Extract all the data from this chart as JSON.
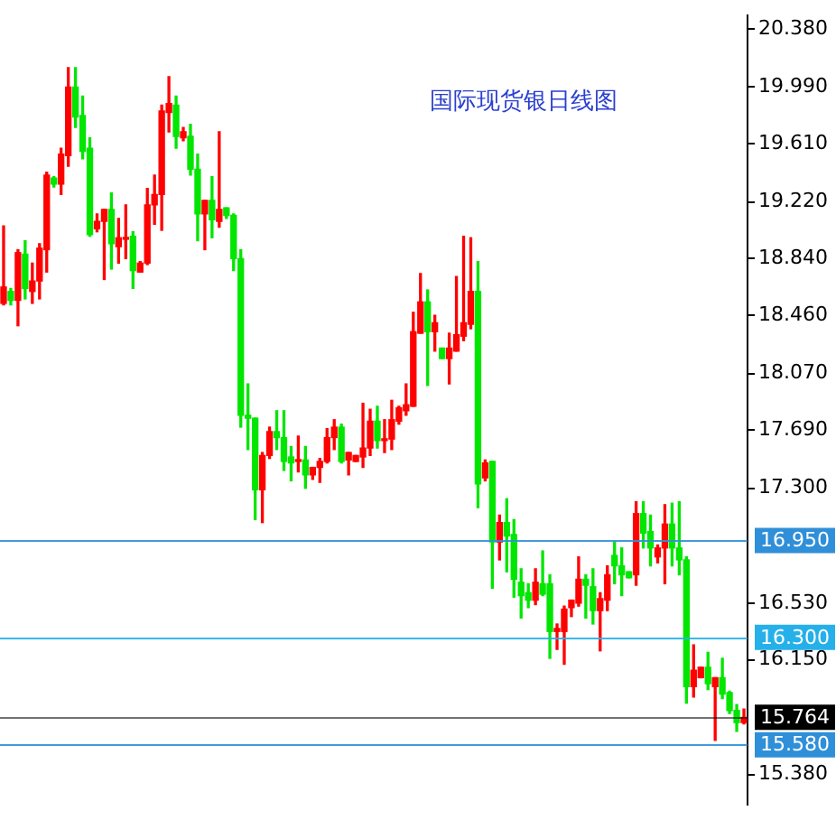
{
  "chart_data": {
    "type": "candlestick",
    "title": "国际现货银日线图",
    "categories": [
      null,
      null,
      null,
      null,
      null,
      null,
      null,
      null,
      null,
      null,
      null,
      null,
      null,
      null,
      null,
      null,
      null,
      null,
      null,
      null,
      null,
      null,
      null,
      null,
      null,
      null,
      null,
      null,
      null,
      null,
      null,
      null,
      null,
      null,
      null,
      null,
      null,
      null,
      null,
      null,
      null,
      null,
      null,
      null,
      null,
      null,
      null,
      null,
      null,
      null,
      null,
      null,
      null,
      null,
      null,
      null,
      null,
      null,
      null,
      null,
      null,
      null,
      null,
      null,
      null,
      null,
      null,
      null,
      null,
      null,
      null,
      null,
      null,
      null,
      null,
      null,
      null,
      null,
      null,
      null,
      null,
      null,
      null,
      null,
      null,
      null,
      null,
      null,
      null,
      null,
      null,
      null,
      null,
      null,
      null,
      null,
      null,
      null,
      null,
      null,
      null,
      null,
      null,
      null
    ],
    "ohlc": [
      [
        18.54,
        19.06,
        18.53,
        18.65
      ],
      [
        18.62,
        18.64,
        18.53,
        18.56
      ],
      [
        18.56,
        18.9,
        18.39,
        18.88
      ],
      [
        18.87,
        18.96,
        18.57,
        18.64
      ],
      [
        18.62,
        18.81,
        18.54,
        18.69
      ],
      [
        18.69,
        18.94,
        18.57,
        18.91
      ],
      [
        18.9,
        19.42,
        18.75,
        19.4
      ],
      [
        19.38,
        19.39,
        19.32,
        19.34
      ],
      [
        19.34,
        19.58,
        19.27,
        19.54
      ],
      [
        19.53,
        20.12,
        19.46,
        19.99
      ],
      [
        19.99,
        20.12,
        19.72,
        19.79
      ],
      [
        19.8,
        19.93,
        19.51,
        19.56
      ],
      [
        19.58,
        19.65,
        18.99,
        19.0
      ],
      [
        19.04,
        19.14,
        19.02,
        19.09
      ],
      [
        19.09,
        19.17,
        18.7,
        19.17
      ],
      [
        19.17,
        19.28,
        18.77,
        18.94
      ],
      [
        18.92,
        19.11,
        18.81,
        18.98
      ],
      [
        18.97,
        19.2,
        18.84,
        18.98
      ],
      [
        18.99,
        19.02,
        18.64,
        18.76
      ],
      [
        18.75,
        18.82,
        18.75,
        18.81
      ],
      [
        18.81,
        19.31,
        18.8,
        19.2
      ],
      [
        19.2,
        19.4,
        19.07,
        19.27
      ],
      [
        19.27,
        19.87,
        19.03,
        19.83
      ],
      [
        19.82,
        20.06,
        19.69,
        19.88
      ],
      [
        19.87,
        19.93,
        19.58,
        19.66
      ],
      [
        19.65,
        19.72,
        19.63,
        19.69
      ],
      [
        19.66,
        19.74,
        19.4,
        19.44
      ],
      [
        19.44,
        19.54,
        18.96,
        19.14
      ],
      [
        19.14,
        19.23,
        18.9,
        19.23
      ],
      [
        19.23,
        19.39,
        18.98,
        19.1
      ],
      [
        19.09,
        19.69,
        19.05,
        19.17
      ],
      [
        19.18,
        19.18,
        19.11,
        19.13
      ],
      [
        19.13,
        19.14,
        18.76,
        18.84
      ],
      [
        18.84,
        18.9,
        17.71,
        17.79
      ],
      [
        17.79,
        18.0,
        17.56,
        17.77
      ],
      [
        17.77,
        17.77,
        17.09,
        17.29
      ],
      [
        17.29,
        17.54,
        17.07,
        17.52
      ],
      [
        17.52,
        17.71,
        17.5,
        17.68
      ],
      [
        17.68,
        17.82,
        17.56,
        17.64
      ],
      [
        17.64,
        17.82,
        17.42,
        17.48
      ],
      [
        17.51,
        17.58,
        17.35,
        17.47
      ],
      [
        17.48,
        17.65,
        17.41,
        17.49
      ],
      [
        17.49,
        17.58,
        17.3,
        17.39
      ],
      [
        17.39,
        17.44,
        17.36,
        17.44
      ],
      [
        17.44,
        17.5,
        17.34,
        17.48
      ],
      [
        17.48,
        17.7,
        17.47,
        17.64
      ],
      [
        17.64,
        17.76,
        17.56,
        17.71
      ],
      [
        17.71,
        17.73,
        17.47,
        17.48
      ],
      [
        17.49,
        17.54,
        17.39,
        17.54
      ],
      [
        17.48,
        17.52,
        17.48,
        17.52
      ],
      [
        17.51,
        17.87,
        17.44,
        17.57
      ],
      [
        17.57,
        17.83,
        17.52,
        17.75
      ],
      [
        17.75,
        17.85,
        17.57,
        17.62
      ],
      [
        17.62,
        17.76,
        17.54,
        17.63
      ],
      [
        17.63,
        17.89,
        17.56,
        17.76
      ],
      [
        17.75,
        17.85,
        17.73,
        17.84
      ],
      [
        17.82,
        18.0,
        17.79,
        17.86
      ],
      [
        17.85,
        18.48,
        17.85,
        18.35
      ],
      [
        18.34,
        18.74,
        18.34,
        18.55
      ],
      [
        18.55,
        18.63,
        17.99,
        18.35
      ],
      [
        18.35,
        18.46,
        18.22,
        18.41
      ],
      [
        18.24,
        18.24,
        18.17,
        18.17
      ],
      [
        18.17,
        18.34,
        18.0,
        18.24
      ],
      [
        18.22,
        18.72,
        18.22,
        18.33
      ],
      [
        18.32,
        18.99,
        18.29,
        18.41
      ],
      [
        18.4,
        18.98,
        18.37,
        18.62
      ],
      [
        18.62,
        18.82,
        17.17,
        17.33
      ],
      [
        17.37,
        17.49,
        17.35,
        17.47
      ],
      [
        17.48,
        17.48,
        16.63,
        16.94
      ],
      [
        16.94,
        17.12,
        16.82,
        17.07
      ],
      [
        17.07,
        17.23,
        16.74,
        16.98
      ],
      [
        16.99,
        17.09,
        16.57,
        16.69
      ],
      [
        16.67,
        16.76,
        16.43,
        16.58
      ],
      [
        16.6,
        16.66,
        16.5,
        16.55
      ],
      [
        16.55,
        16.76,
        16.52,
        16.67
      ],
      [
        16.66,
        16.88,
        16.58,
        16.59
      ],
      [
        16.66,
        16.72,
        16.16,
        16.34
      ],
      [
        16.34,
        16.39,
        16.22,
        16.36
      ],
      [
        16.34,
        16.51,
        16.12,
        16.49
      ],
      [
        16.5,
        16.55,
        16.44,
        16.55
      ],
      [
        16.53,
        16.84,
        16.51,
        16.69
      ],
      [
        16.69,
        16.72,
        16.43,
        16.65
      ],
      [
        16.64,
        16.76,
        16.39,
        16.48
      ],
      [
        16.48,
        16.6,
        16.21,
        16.56
      ],
      [
        16.55,
        16.78,
        16.48,
        16.72
      ],
      [
        16.85,
        16.94,
        16.66,
        16.78
      ],
      [
        16.78,
        16.9,
        16.58,
        16.72
      ],
      [
        16.74,
        16.74,
        16.7,
        16.7
      ],
      [
        16.72,
        17.21,
        16.65,
        17.13
      ],
      [
        17.13,
        17.21,
        16.9,
        17.0
      ],
      [
        17.01,
        17.12,
        16.78,
        16.9
      ],
      [
        16.84,
        16.92,
        16.8,
        16.9
      ],
      [
        16.9,
        17.19,
        16.66,
        17.06
      ],
      [
        17.06,
        17.2,
        16.78,
        16.9
      ],
      [
        16.9,
        17.21,
        16.72,
        16.82
      ],
      [
        16.82,
        16.84,
        15.86,
        15.97
      ],
      [
        15.97,
        16.25,
        15.9,
        16.08
      ],
      [
        16.03,
        16.1,
        16.03,
        16.1
      ],
      [
        16.1,
        16.2,
        15.95,
        15.99
      ],
      [
        15.97,
        16.03,
        15.61,
        16.03
      ],
      [
        16.03,
        16.16,
        15.89,
        15.92
      ],
      [
        15.93,
        15.94,
        15.79,
        15.81
      ],
      [
        15.81,
        15.85,
        15.67,
        15.73
      ],
      [
        15.73,
        15.82,
        15.72,
        15.764
      ]
    ],
    "colors": [
      "#ff0000",
      "#00e600",
      "#ff0000",
      "#00e600",
      "#ff0000",
      "#ff0000",
      "#ff0000",
      "#00e600",
      "#ff0000",
      "#ff0000",
      "#00e600",
      "#00e600",
      "#00e600",
      "#ff0000",
      "#ff0000",
      "#00e600",
      "#ff0000",
      "#ff0000",
      "#00e600",
      "#ff0000",
      "#ff0000",
      "#ff0000",
      "#ff0000",
      "#ff0000",
      "#00e600",
      "#ff0000",
      "#00e600",
      "#00e600",
      "#ff0000",
      "#00e600",
      "#ff0000",
      "#00e600",
      "#00e600",
      "#00e600",
      "#00e600",
      "#00e600",
      "#ff0000",
      "#ff0000",
      "#00e600",
      "#00e600",
      "#00e600",
      "#ff0000",
      "#00e600",
      "#ff0000",
      "#ff0000",
      "#ff0000",
      "#ff0000",
      "#00e600",
      "#ff0000",
      "#ff0000",
      "#ff0000",
      "#ff0000",
      "#00e600",
      "#ff0000",
      "#ff0000",
      "#ff0000",
      "#ff0000",
      "#ff0000",
      "#ff0000",
      "#00e600",
      "#ff0000",
      "#00e600",
      "#ff0000",
      "#ff0000",
      "#ff0000",
      "#ff0000",
      "#00e600",
      "#ff0000",
      "#00e600",
      "#ff0000",
      "#00e600",
      "#00e600",
      "#00e600",
      "#00e600",
      "#ff0000",
      "#00e600",
      "#00e600",
      "#ff0000",
      "#ff0000",
      "#ff0000",
      "#ff0000",
      "#00e600",
      "#00e600",
      "#ff0000",
      "#ff0000",
      "#00e600",
      "#00e600",
      "#00e600",
      "#ff0000",
      "#00e600",
      "#00e600",
      "#ff0000",
      "#ff0000",
      "#00e600",
      "#00e600",
      "#00e600",
      "#ff0000",
      "#ff0000",
      "#00e600",
      "#ff0000",
      "#00e600",
      "#00e600",
      "#00e600",
      "#ff0000"
    ],
    "ylim": [
      15.18,
      20.47
    ],
    "yticks": [
      {
        "value": 15.38,
        "label": "15.380"
      },
      {
        "value": 16.15,
        "label": "16.150"
      },
      {
        "value": 16.53,
        "label": "16.530"
      },
      {
        "value": 17.3,
        "label": "17.300"
      },
      {
        "value": 17.69,
        "label": "17.690"
      },
      {
        "value": 18.07,
        "label": "18.070"
      },
      {
        "value": 18.46,
        "label": "18.460"
      },
      {
        "value": 18.84,
        "label": "18.840"
      },
      {
        "value": 19.22,
        "label": "19.220"
      },
      {
        "value": 19.61,
        "label": "19.610"
      },
      {
        "value": 19.99,
        "label": "19.990"
      },
      {
        "value": 20.38,
        "label": "20.380"
      }
    ],
    "ref_lines": [
      {
        "axis": "y",
        "value": 16.95,
        "label": "16.950",
        "color": "#2f8fd8"
      },
      {
        "axis": "y",
        "value": 16.3,
        "label": "16.300",
        "color": "#25b0ea"
      },
      {
        "axis": "y",
        "value": 15.764,
        "label": "15.764",
        "color": "#000000"
      },
      {
        "axis": "y",
        "value": 15.58,
        "label": "15.580",
        "color": "#2f8fd8"
      }
    ],
    "tick_labels": "y"
  }
}
